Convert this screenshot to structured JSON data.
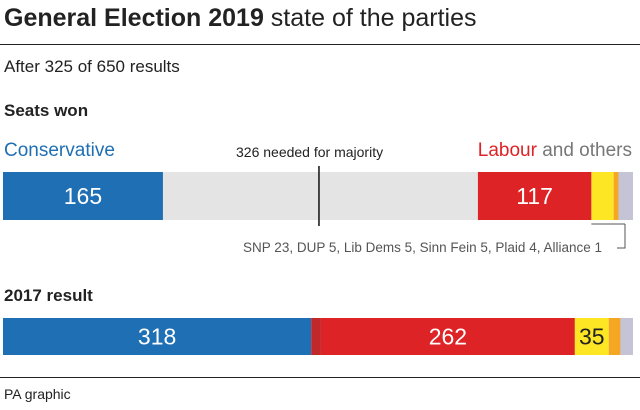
{
  "header": {
    "title_bold": "General Election 2019",
    "title_rest": " state of the parties",
    "subtitle": "After 325 of 650 results"
  },
  "labels": {
    "seats_won": "Seats won",
    "conservative": "Conservative",
    "labour": "Labour",
    "and_others": " and others",
    "majority": "326 needed for majority",
    "others_breakdown": "SNP 23, DUP 5, Lib Dems 5, Sinn Fein 5, Plaid 4, Alliance 1",
    "result_2017": "2017 result",
    "footer": "PA graphic"
  },
  "colors": {
    "conservative": "#1f6fb4",
    "labour": "#de2326",
    "snp": "#fde725",
    "other1": "#f5a623",
    "other2": "#c4c4d6",
    "undeclared": "#e4e4e4",
    "text_con": "#1f6fb4",
    "text_lab": "#de2326",
    "text_other": "#777777"
  },
  "chart_data": [
    {
      "type": "bar",
      "title": "Seats won",
      "total_seats": 650,
      "majority": 326,
      "left": [
        {
          "name": "Conservative",
          "value": 165,
          "color": "#1f6fb4",
          "show_label": true
        }
      ],
      "right": [
        {
          "name": "Labour",
          "value": 117,
          "color": "#de2326",
          "show_label": true
        },
        {
          "name": "SNP",
          "value": 23,
          "color": "#fde725",
          "show_label": false
        },
        {
          "name": "DUP",
          "value": 5,
          "color": "#f5a623",
          "show_label": false
        },
        {
          "name": "Others",
          "value": 15,
          "color": "#c4c4d6",
          "show_label": false
        }
      ]
    },
    {
      "type": "bar",
      "title": "2017 result",
      "total_seats": 650,
      "left": [
        {
          "name": "Conservative",
          "value": 318,
          "color": "#1f6fb4",
          "show_label": true
        },
        {
          "name": "DUP",
          "value": 10,
          "color": "#c0282c",
          "show_label": false
        },
        {
          "name": "Labour",
          "value": 262,
          "color": "#de2326",
          "show_label": true
        },
        {
          "name": "SNP",
          "value": 35,
          "color": "#fde725",
          "show_label": true
        },
        {
          "name": "Lib Dems",
          "value": 12,
          "color": "#f5a623",
          "show_label": false
        },
        {
          "name": "Others",
          "value": 13,
          "color": "#c4c4d6",
          "show_label": false
        }
      ],
      "right": []
    }
  ]
}
